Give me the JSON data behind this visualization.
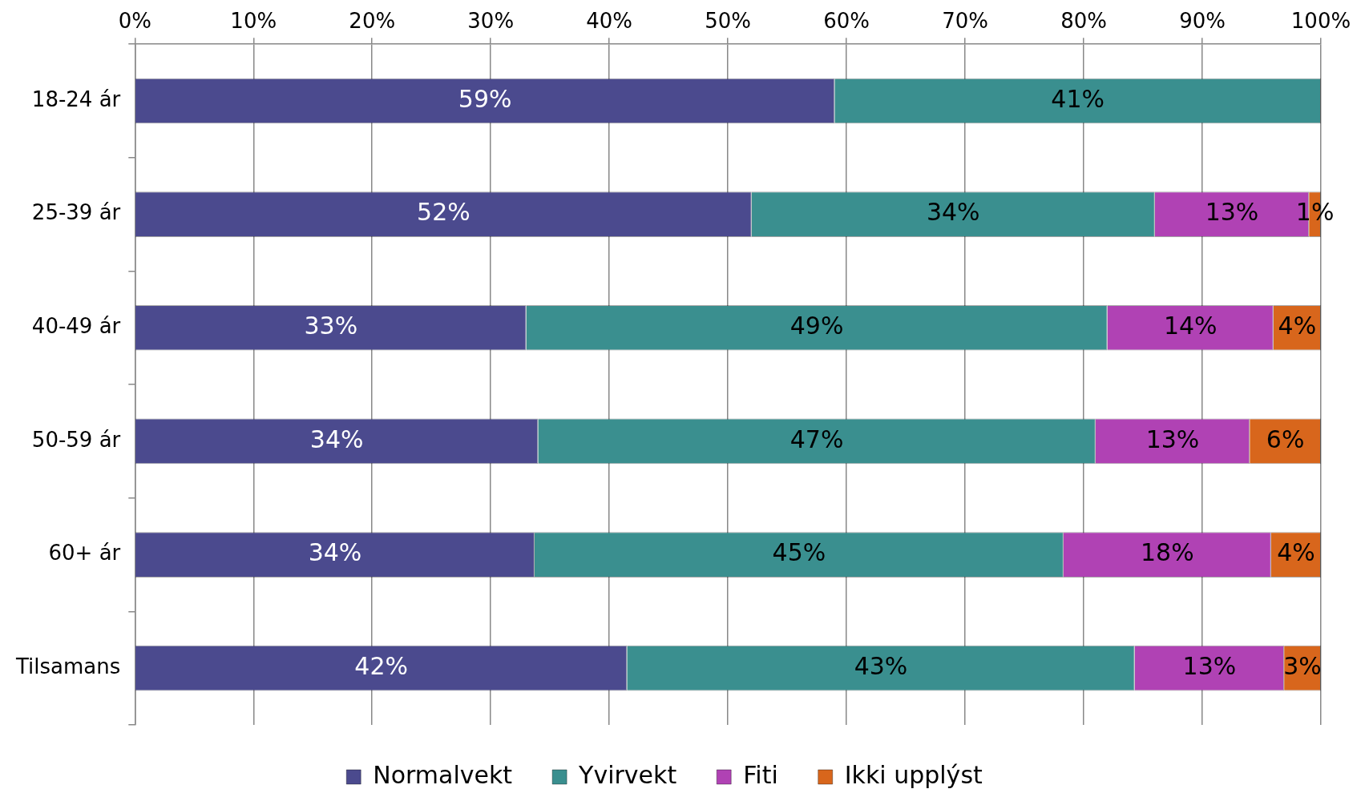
{
  "chart_data": {
    "type": "bar",
    "orientation": "horizontal",
    "stacked": true,
    "categories": [
      "18-24 ár",
      "25-39 ár",
      "40-49 ár",
      "50-59 ár",
      "60+ ár",
      "Tilsamans"
    ],
    "series": [
      {
        "name": "Normalvekt",
        "color": "#4b4a8e",
        "values": [
          59,
          52,
          33,
          34,
          33.7,
          41.5
        ],
        "value_labels": [
          "59%",
          "52%",
          "33%",
          "34%",
          "34%",
          "42%"
        ]
      },
      {
        "name": "Yvirvekt",
        "color": "#3a8f8f",
        "values": [
          41,
          34,
          49,
          47,
          44.6,
          42.8
        ],
        "value_labels": [
          "41%",
          "34%",
          "49%",
          "47%",
          "45%",
          "43%"
        ]
      },
      {
        "name": "Fiti",
        "color": "#b042b4",
        "values": [
          null,
          13,
          14,
          13,
          17.5,
          12.6
        ],
        "value_labels": [
          null,
          "13%",
          "14%",
          "13%",
          "18%",
          "13%"
        ]
      },
      {
        "name": "Ikki upplýst",
        "color": "#d8661c",
        "values": [
          null,
          1,
          4,
          6,
          4.2,
          3.1
        ],
        "value_labels": [
          null,
          "1%",
          "4%",
          "6%",
          "4%",
          "3%"
        ]
      }
    ],
    "xlim": [
      0,
      100
    ],
    "xticks": [
      {
        "value": 0,
        "label": "0%"
      },
      {
        "value": 10,
        "label": "10%"
      },
      {
        "value": 20,
        "label": "20%"
      },
      {
        "value": 30,
        "label": "30%"
      },
      {
        "value": 40,
        "label": "40%"
      },
      {
        "value": 50,
        "label": "50%"
      },
      {
        "value": 60,
        "label": "60%"
      },
      {
        "value": 70,
        "label": "70%"
      },
      {
        "value": 80,
        "label": "80%"
      },
      {
        "value": 90,
        "label": "90%"
      },
      {
        "value": 100,
        "label": "100%"
      }
    ],
    "grid": "x",
    "legend": "bottom"
  }
}
